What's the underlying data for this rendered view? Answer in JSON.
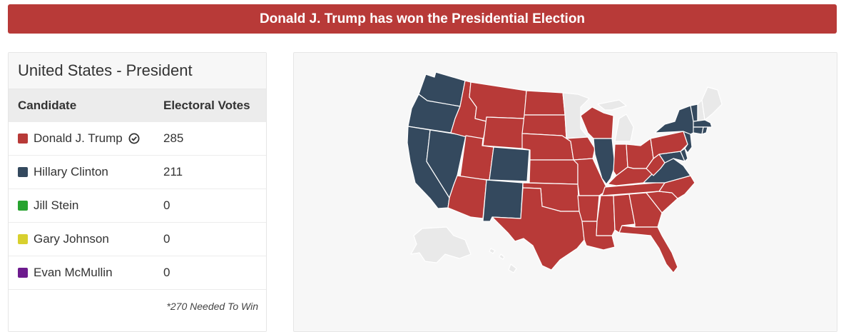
{
  "banner": {
    "text": "Donald J. Trump has won the Presidential Election"
  },
  "results": {
    "title": "United States - President",
    "headers": {
      "candidate": "Candidate",
      "votes": "Electoral Votes"
    },
    "candidates": [
      {
        "name": "Donald J. Trump",
        "votes": "285",
        "color": "#b83a38",
        "winner": true
      },
      {
        "name": "Hillary Clinton",
        "votes": "211",
        "color": "#34495e",
        "winner": false
      },
      {
        "name": "Jill Stein",
        "votes": "0",
        "color": "#27a32f",
        "winner": false
      },
      {
        "name": "Gary Johnson",
        "votes": "0",
        "color": "#d8d02e",
        "winner": false
      },
      {
        "name": "Evan McMullin",
        "votes": "0",
        "color": "#6d1b8e",
        "winner": false
      }
    ],
    "footnote": "*270 Needed To Win"
  },
  "map": {
    "colors": {
      "rep": "#b83a38",
      "dem": "#34495e",
      "undecided": "#e9e9e9"
    }
  }
}
